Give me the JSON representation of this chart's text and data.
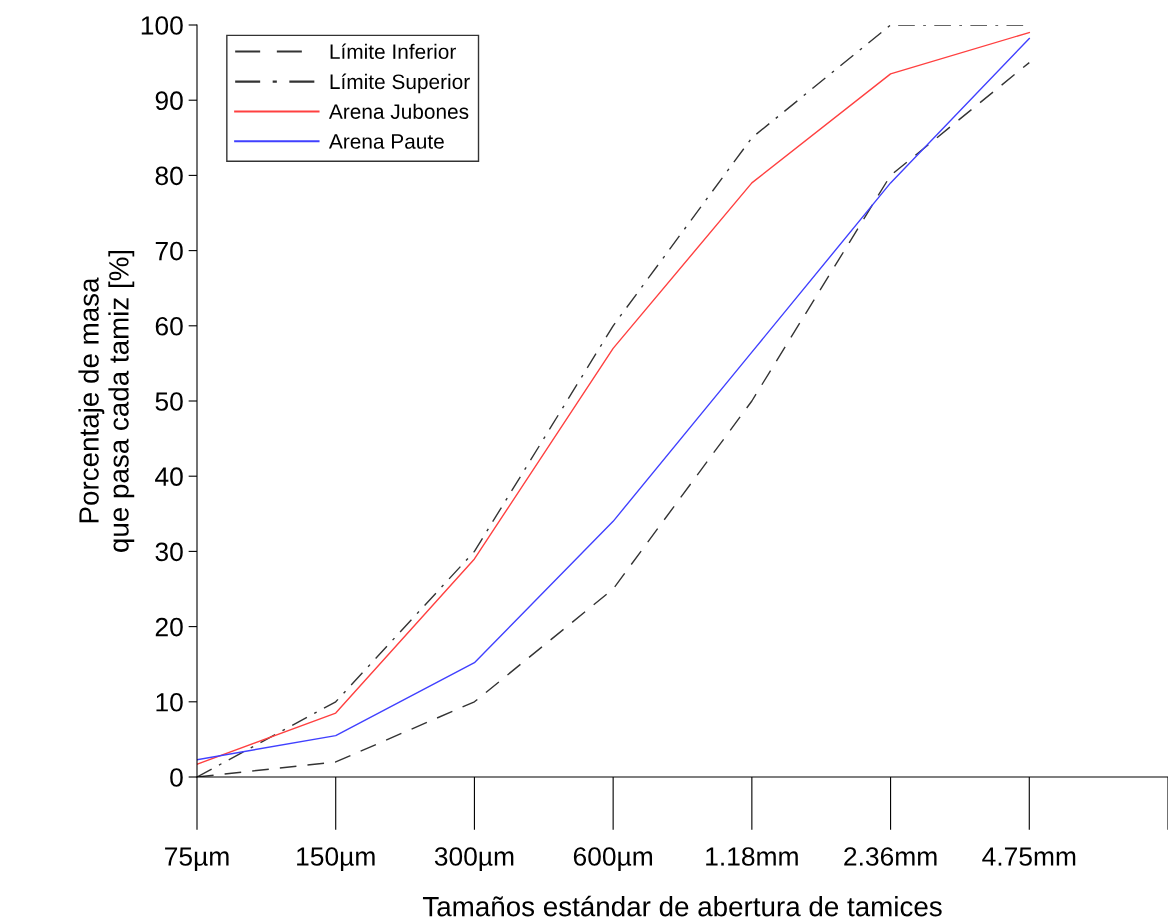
{
  "chart_data": {
    "type": "line",
    "xlabel": "Tamaños estándar de abertura de tamices",
    "ylabel": "Porcentaje de masa\nque pasa cada tamiz [%]",
    "categories": [
      "75µm",
      "150µm",
      "300µm",
      "600µm",
      "1.18mm",
      "2.36mm",
      "4.75mm",
      null
    ],
    "ylim": [
      0,
      100
    ],
    "yticks": [
      0,
      10,
      20,
      30,
      40,
      50,
      60,
      70,
      80,
      90,
      100
    ],
    "grid": false,
    "legend": "top left",
    "marker": "none",
    "series": [
      {
        "name": "Límite Inferior",
        "color": "#333333",
        "line_style": "dashed",
        "values": [
          0,
          2,
          10,
          25,
          50,
          80,
          95,
          null
        ]
      },
      {
        "name": "Límite Superior",
        "color": "#333333",
        "line_style": "dashdot",
        "values": [
          0,
          10,
          30,
          60,
          85,
          100,
          100,
          null
        ]
      },
      {
        "name": "Arena Jubones",
        "color": "#ff4040",
        "line_style": "solid",
        "values": [
          1.7,
          8.5,
          29,
          57,
          79,
          93.5,
          99,
          null
        ]
      },
      {
        "name": "Arena Paute",
        "color": "#4040ff",
        "line_style": "solid",
        "values": [
          2.3,
          5.5,
          15.2,
          34,
          56.5,
          79,
          98.2,
          null
        ]
      }
    ]
  }
}
